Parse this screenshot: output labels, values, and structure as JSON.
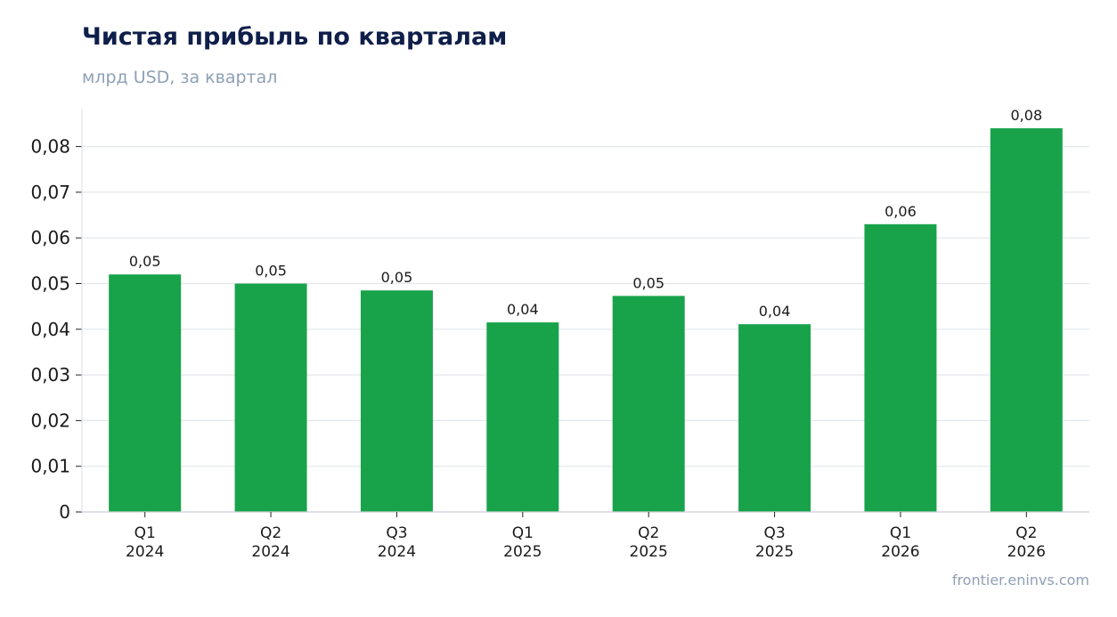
{
  "title": "Чистая прибыль по кварталам",
  "subtitle": "млрд USD, за квартал",
  "watermark": "frontier.eninvs.com",
  "colors": {
    "bar": "#18a34a",
    "title": "#0f1f4a",
    "muted": "#8fa0b6",
    "grid": "#e3e7ec",
    "axis": "#222222"
  },
  "chart_data": {
    "type": "bar",
    "title": "Чистая прибыль по кварталам",
    "subtitle": "млрд USD, за квартал",
    "categories": [
      [
        "Q1",
        "2024"
      ],
      [
        "Q2",
        "2024"
      ],
      [
        "Q3",
        "2024"
      ],
      [
        "Q1",
        "2025"
      ],
      [
        "Q2",
        "2025"
      ],
      [
        "Q3",
        "2025"
      ],
      [
        "Q1",
        "2026"
      ],
      [
        "Q2",
        "2026"
      ]
    ],
    "values": [
      0.052,
      0.05,
      0.0485,
      0.0415,
      0.0473,
      0.0411,
      0.063,
      0.084
    ],
    "data_labels": [
      "0,05",
      "0,05",
      "0,05",
      "0,04",
      "0,05",
      "0,04",
      "0,06",
      "0,08"
    ],
    "yticks": [
      0,
      0.01,
      0.02,
      0.03,
      0.04,
      0.05,
      0.06,
      0.07,
      0.08
    ],
    "ytick_labels": [
      "0",
      "0,01",
      "0,02",
      "0,03",
      "0,04",
      "0,05",
      "0,06",
      "0,07",
      "0,08"
    ],
    "ylim": [
      0,
      0.088
    ],
    "grid": true,
    "legend": "none"
  }
}
